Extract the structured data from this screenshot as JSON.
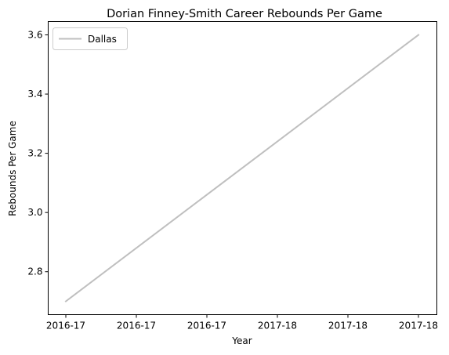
{
  "chart_data": {
    "type": "line",
    "title": "Dorian Finney-Smith Career Rebounds Per Game",
    "xlabel": "Year",
    "ylabel": "Rebounds Per Game",
    "x_tick_labels": [
      "2016-17",
      "2016-17",
      "2016-17",
      "2017-18",
      "2017-18",
      "2017-18"
    ],
    "x_positions": [
      0,
      0.2,
      0.4,
      0.6,
      0.8,
      1.0
    ],
    "y_ticks": [
      2.8,
      3.0,
      3.2,
      3.4,
      3.6
    ],
    "ylim": [
      2.655,
      3.645
    ],
    "grid": false,
    "legend_position": "top-left",
    "series": [
      {
        "name": "Dallas",
        "color": "#bfbfbf",
        "x": [
          "2016-17",
          "2017-18"
        ],
        "x_pos": [
          0,
          1.0
        ],
        "values": [
          2.7,
          3.6
        ]
      }
    ]
  }
}
